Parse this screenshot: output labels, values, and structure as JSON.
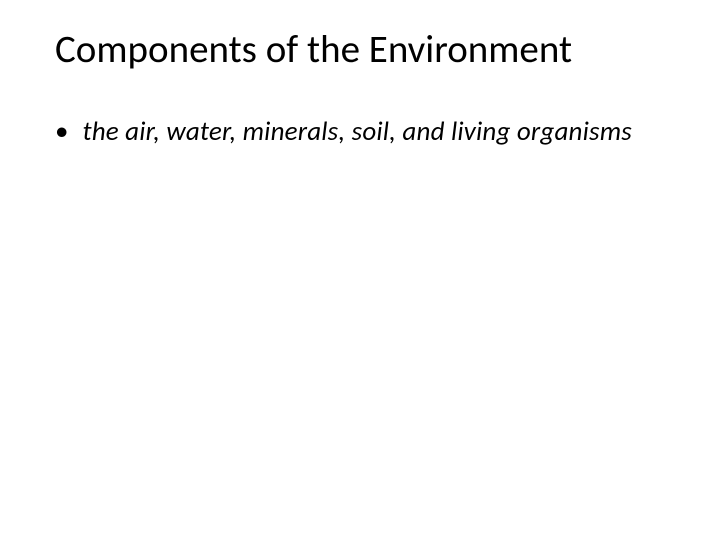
{
  "slide": {
    "title": "Components of the Environment",
    "bullets": [
      {
        "text": "the air, water, minerals, soil, and living organisms"
      }
    ]
  },
  "styling": {
    "background_color": "#ffffff",
    "title_color": "#000000",
    "title_fontsize": 39,
    "title_fontweight": 400,
    "body_color": "#000000",
    "body_fontsize": 27,
    "body_fontstyle": "italic",
    "bullet_char": "•",
    "font_family": "Calibri"
  }
}
